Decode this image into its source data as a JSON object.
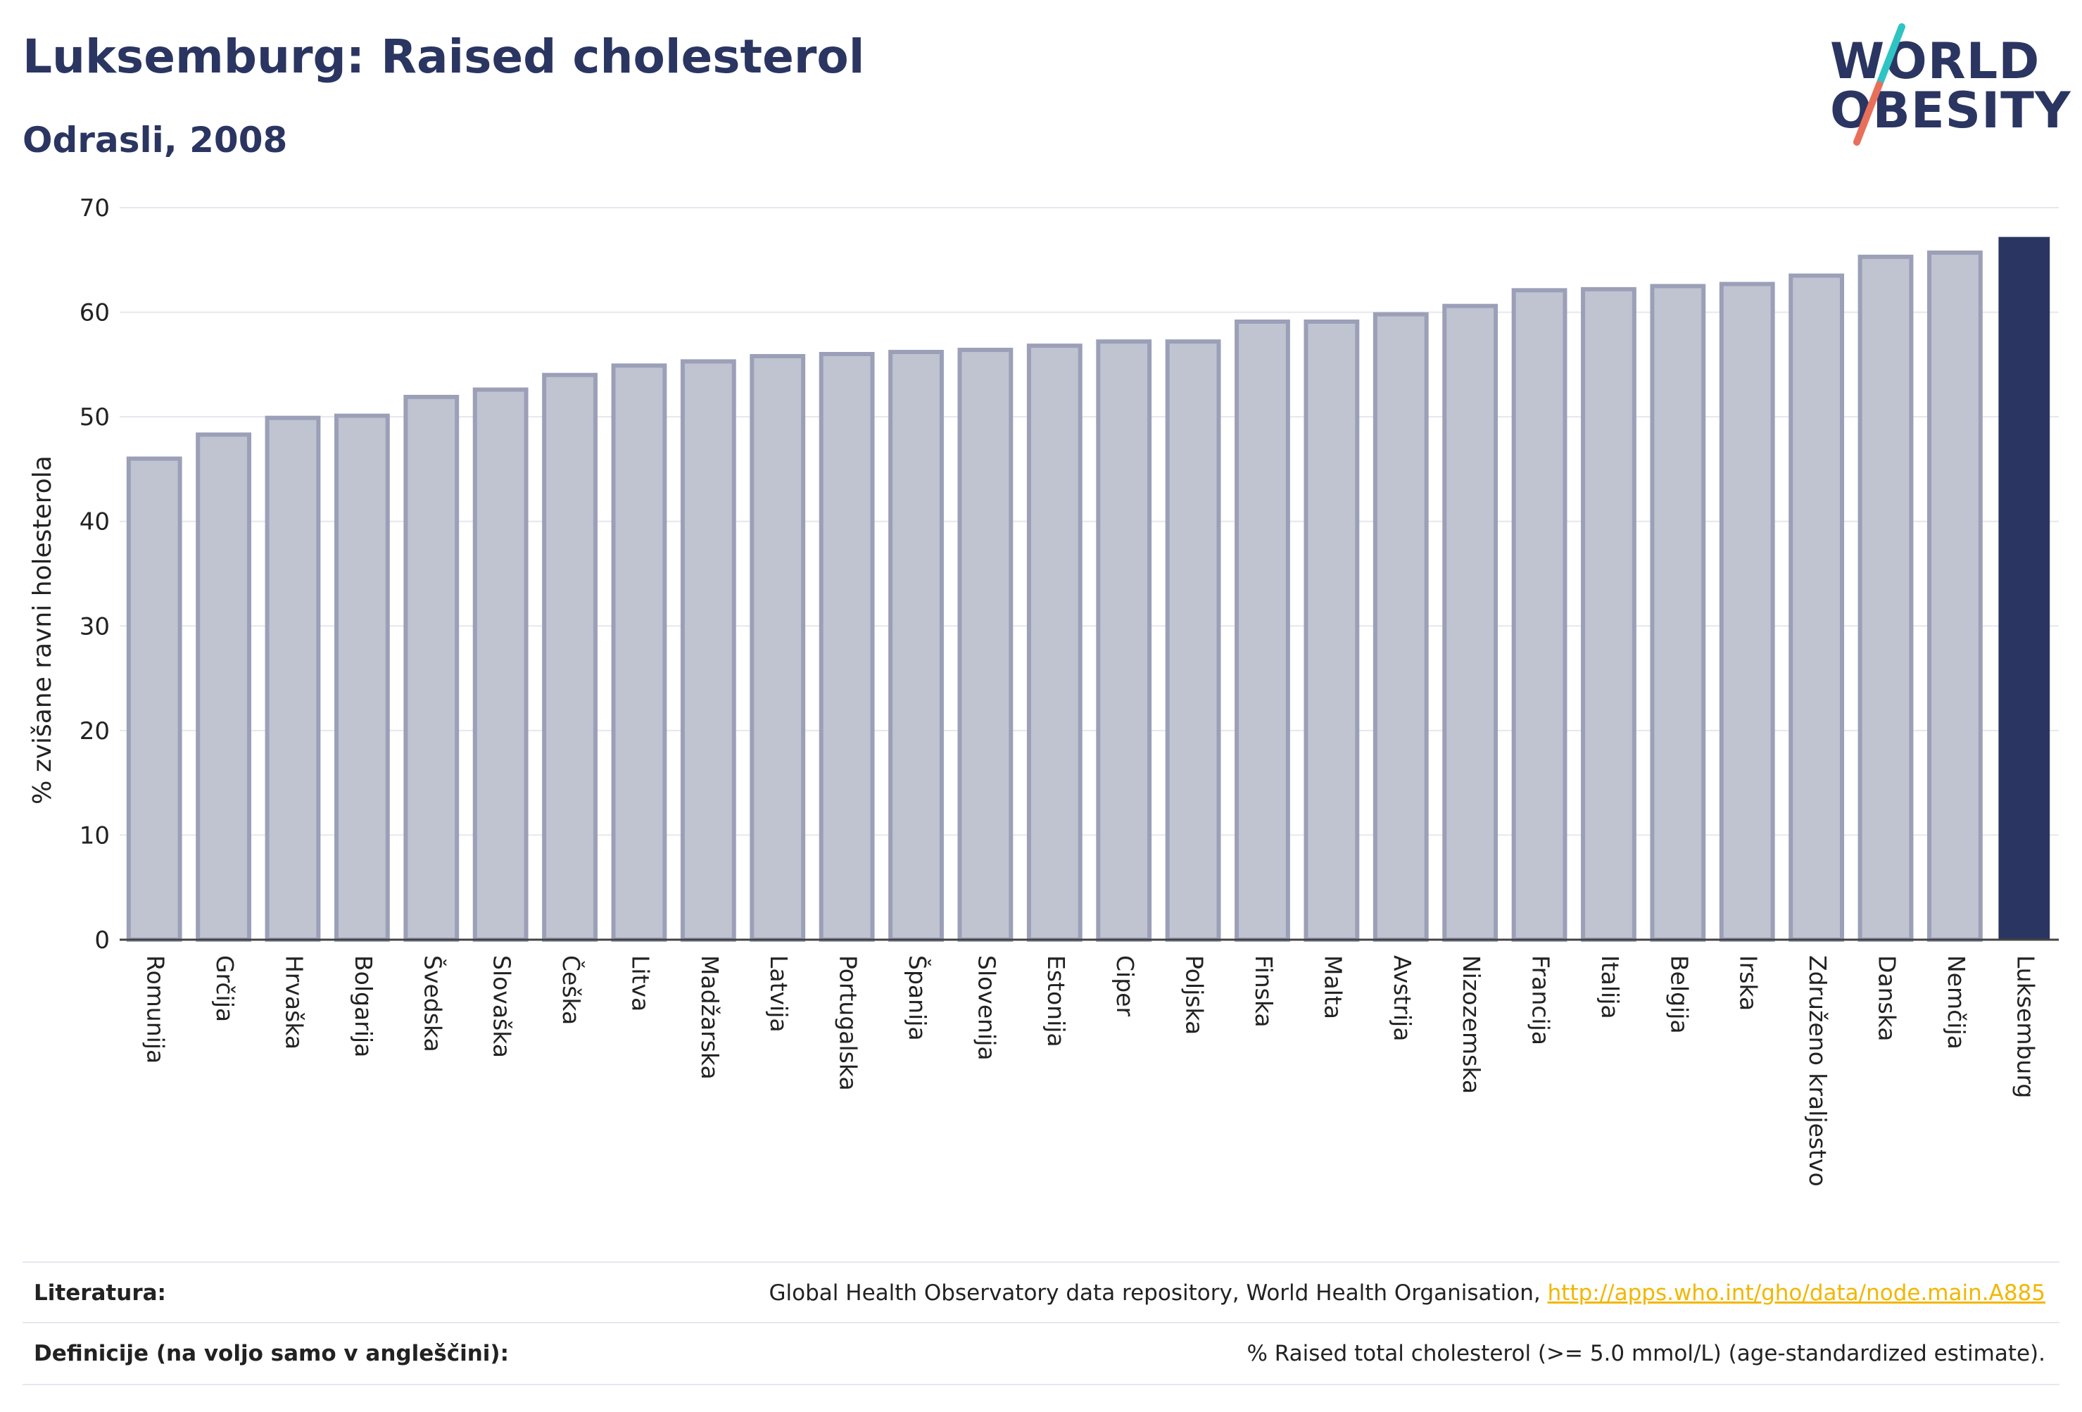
{
  "header": {
    "title": "Luksemburg: Raised cholesterol",
    "subtitle": "Odrasli, 2008"
  },
  "logo": {
    "line1": "WORLD",
    "line2": "OBESITY",
    "colors": {
      "text": "#2b3561",
      "slash_top": "#2ec4c4",
      "slash_bottom": "#e8705a"
    }
  },
  "chart_data": {
    "type": "bar",
    "ylabel": "% zvišane ravni holesterola",
    "xlabel": "",
    "ylim": [
      0,
      70
    ],
    "yticks": [
      0,
      10,
      20,
      30,
      40,
      50,
      60,
      70
    ],
    "grid": true,
    "categories": [
      "Romunija",
      "Grčija",
      "Hrvaška",
      "Bolgarija",
      "Švedska",
      "Slovaška",
      "Češka",
      "Litva",
      "Madžarska",
      "Latvija",
      "Portugalska",
      "Španija",
      "Slovenija",
      "Estonija",
      "Ciper",
      "Poljska",
      "Finska",
      "Malta",
      "Avstrija",
      "Nizozemska",
      "Francija",
      "Italija",
      "Belgija",
      "Irska",
      "Združeno kraljestvo",
      "Danska",
      "Nemčija",
      "Luksemburg"
    ],
    "values": [
      46.0,
      48.3,
      49.9,
      50.1,
      51.9,
      52.6,
      54.0,
      54.9,
      55.3,
      55.8,
      56.0,
      56.2,
      56.4,
      56.8,
      57.2,
      57.2,
      59.1,
      59.1,
      59.8,
      60.6,
      62.1,
      62.2,
      62.5,
      62.7,
      63.5,
      65.3,
      65.7,
      67.2
    ],
    "highlight": "Luksemburg",
    "colors": {
      "bar_fill": "#c0c3d0",
      "bar_stroke": "#9ba0b8",
      "highlight_fill": "#2b3561",
      "grid": "#e6e7ee",
      "axis": "#444444"
    }
  },
  "footer": {
    "sources_label": "Literatura:",
    "sources_text": "Global Health Observatory data repository, World Health Organisation, ",
    "sources_link": "http://apps.who.int/gho/data/node.main.A885",
    "definitions_label": "Definicije (na voljo samo v angleščini):",
    "definitions_text": "% Raised total cholesterol (>= 5.0 mmol/L) (age-standardized estimate)."
  }
}
